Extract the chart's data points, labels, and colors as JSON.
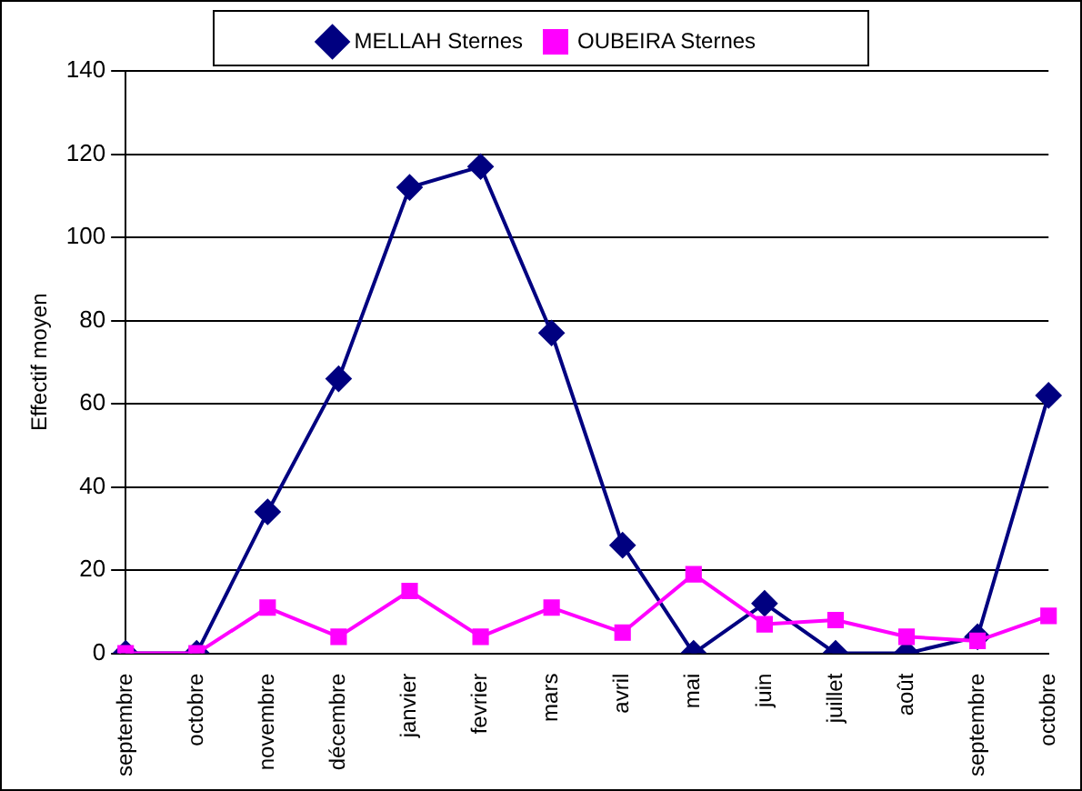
{
  "chart_data": {
    "type": "line",
    "ylabel": "Effectif moyen",
    "categories": [
      "septembre",
      "octobre",
      "novembre",
      "décembre",
      "janvier",
      "fevrier",
      "mars",
      "avril",
      "mai",
      "juin",
      "juillet",
      "août",
      "septembre",
      "octobre"
    ],
    "series": [
      {
        "name": "MELLAH Sternes",
        "color": "#000080",
        "marker": "diamond",
        "values": [
          0,
          0,
          34,
          66,
          112,
          117,
          77,
          26,
          0,
          12,
          0,
          0,
          4,
          62
        ]
      },
      {
        "name": "OUBEIRA Sternes",
        "color": "#ff00ff",
        "marker": "square",
        "values": [
          0,
          0,
          11,
          4,
          15,
          4,
          11,
          5,
          19,
          7,
          8,
          4,
          3,
          9
        ]
      }
    ],
    "ylim": [
      0,
      140
    ],
    "yticks": [
      0,
      20,
      40,
      60,
      80,
      100,
      120,
      140
    ],
    "grid": "y",
    "legend": "top",
    "line_style": "solid"
  }
}
